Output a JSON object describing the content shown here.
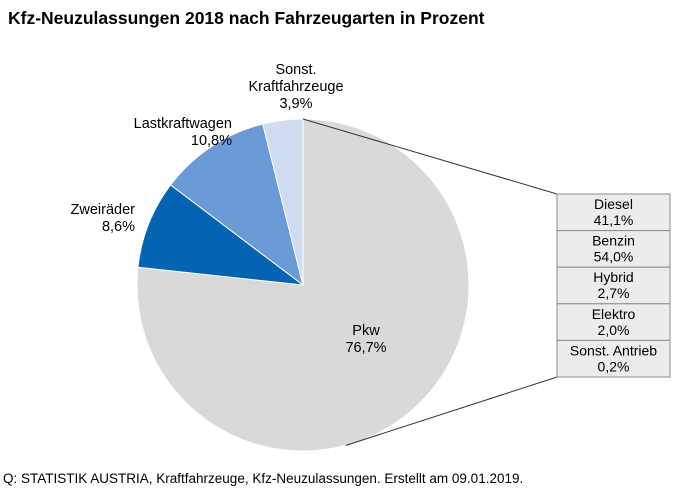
{
  "chart_data": {
    "type": "pie",
    "title": "Kfz-Neuzulassungen 2018 nach Fahrzeugarten in Prozent",
    "source": "Q: STATISTIK AUSTRIA, Kraftfahrzeuge, Kfz-Neuzulassungen. Erstellt am 09.01.2019.",
    "slices": [
      {
        "name": "Pkw",
        "value": 76.7,
        "value_label": "76,7%",
        "color": "#d9d9d9"
      },
      {
        "name": "Zweiräder",
        "value": 8.6,
        "value_label": "8,6%",
        "color": "#0563b4"
      },
      {
        "name": "Lastkraftwagen",
        "value": 10.8,
        "value_label": "10,8%",
        "color": "#6b9bd6"
      },
      {
        "name": "Sonst.\nKraftfahrzeuge",
        "value": 3.9,
        "value_label": "3,9%",
        "color": "#d0dcf2"
      }
    ],
    "breakdown_of": "Pkw",
    "breakdown": [
      {
        "name": "Diesel",
        "value": 41.1,
        "value_label": "41,1%"
      },
      {
        "name": "Benzin",
        "value": 54.0,
        "value_label": "54,0%"
      },
      {
        "name": "Hybrid",
        "value": 2.7,
        "value_label": "2,7%"
      },
      {
        "name": "Elektro",
        "value": 2.0,
        "value_label": "2,0%"
      },
      {
        "name": "Sonst. Antrieb",
        "value": 0.2,
        "value_label": "0,2%"
      }
    ],
    "colors": {
      "breakdown_box_fill": "#ececec",
      "breakdown_box_stroke": "#8c8c8c",
      "connector": "#333333"
    }
  }
}
